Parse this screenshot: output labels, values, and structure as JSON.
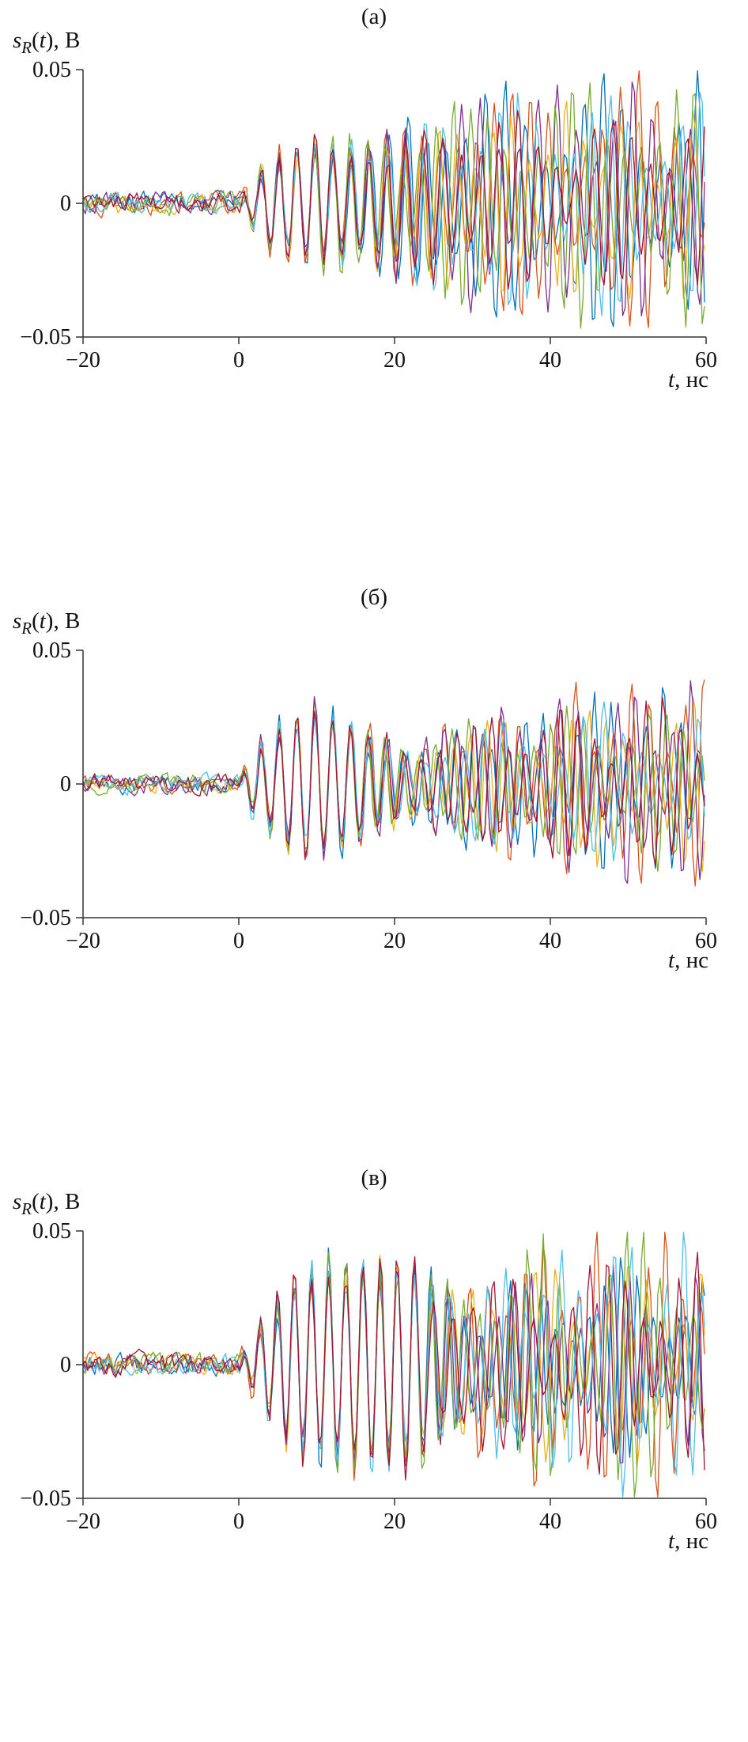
{
  "page": {
    "background": "#ffffff"
  },
  "labels": {
    "y_base": "s",
    "y_sub": "R",
    "y_open": "(",
    "y_var": "t",
    "y_close": "), В",
    "x_var": "t",
    "x_rest": ", нс"
  },
  "chart_data": [
    {
      "type": "line",
      "title": "(а)",
      "ylabel": "sR(t), В",
      "xlabel": "t, нс",
      "xlim": [
        -20,
        60
      ],
      "ylim": [
        -0.05,
        0.05
      ],
      "xticks": [
        -20,
        0,
        20,
        40,
        60
      ],
      "yticks": [
        -0.05,
        0,
        0.05
      ],
      "xtick_labels": [
        "−20",
        "0",
        "20",
        "40",
        "60"
      ],
      "ytick_labels": [
        "−0.05",
        "0",
        "0.05"
      ],
      "grid": false,
      "legend": false,
      "axis_color": "#333333",
      "series_count": 7,
      "series_description": "overlaid noisy received-pulse realizations, coherent after t=0 then progressively decorrelated",
      "colors": [
        "#0072BD",
        "#D95319",
        "#EDB120",
        "#7E2F8E",
        "#77AC30",
        "#4DBEEE",
        "#A2142F"
      ],
      "signal": {
        "carrier_period_ns": 2.3,
        "noise_amp": 0.0035,
        "envelope": [
          [
            -20,
            0
          ],
          [
            0,
            0
          ],
          [
            2,
            0.01
          ],
          [
            5,
            0.019
          ],
          [
            12,
            0.021
          ],
          [
            20,
            0.021
          ],
          [
            25,
            0.027
          ],
          [
            35,
            0.028
          ],
          [
            60,
            0.028
          ]
        ],
        "decoherence_start": 9,
        "decoherence_full": 42,
        "seed": 11
      }
    },
    {
      "type": "line",
      "title": "(б)",
      "ylabel": "sR(t), В",
      "xlabel": "t, нс",
      "xlim": [
        -20,
        60
      ],
      "ylim": [
        -0.05,
        0.05
      ],
      "xticks": [
        -20,
        0,
        20,
        40,
        60
      ],
      "yticks": [
        -0.05,
        0,
        0.05
      ],
      "xtick_labels": [
        "−20",
        "0",
        "20",
        "40",
        "60"
      ],
      "ytick_labels": [
        "−0.05",
        "0",
        "0.05"
      ],
      "grid": false,
      "legend": false,
      "axis_color": "#333333",
      "series_count": 7,
      "series_description": "overlaid noisy received-pulse realizations with burst near t=8–15 ns, dip near t=20 ns, decorrelated tail",
      "colors": [
        "#0072BD",
        "#D95319",
        "#EDB120",
        "#7E2F8E",
        "#77AC30",
        "#4DBEEE",
        "#A2142F"
      ],
      "signal": {
        "carrier_period_ns": 2.3,
        "noise_amp": 0.003,
        "envelope": [
          [
            -20,
            0
          ],
          [
            0,
            0
          ],
          [
            2,
            0.012
          ],
          [
            6,
            0.022
          ],
          [
            10,
            0.028
          ],
          [
            14,
            0.024
          ],
          [
            18,
            0.014
          ],
          [
            22,
            0.011
          ],
          [
            26,
            0.016
          ],
          [
            32,
            0.018
          ],
          [
            40,
            0.02
          ],
          [
            50,
            0.021
          ],
          [
            60,
            0.021
          ]
        ],
        "decoherence_start": 13,
        "decoherence_full": 48,
        "seed": 22
      }
    },
    {
      "type": "line",
      "title": "(в)",
      "ylabel": "sR(t), В",
      "xlabel": "t, нс",
      "xlim": [
        -20,
        60
      ],
      "ylim": [
        -0.05,
        0.05
      ],
      "xticks": [
        -20,
        0,
        20,
        40,
        60
      ],
      "yticks": [
        -0.05,
        0,
        0.05
      ],
      "xtick_labels": [
        "−20",
        "0",
        "20",
        "40",
        "60"
      ],
      "ytick_labels": [
        "−0.05",
        "0",
        "0.05"
      ],
      "grid": false,
      "legend": false,
      "axis_color": "#333333",
      "series_count": 7,
      "series_description": "overlaid received-pulse realizations: strong coherent burst t=2–24 ns (~±0.04 В), chaotic decorrelated tail reaching ±0.05 В",
      "colors": [
        "#0072BD",
        "#D95319",
        "#EDB120",
        "#7E2F8E",
        "#77AC30",
        "#4DBEEE",
        "#A2142F"
      ],
      "signal": {
        "carrier_period_ns": 2.2,
        "noise_amp": 0.0035,
        "envelope": [
          [
            -20,
            0
          ],
          [
            0,
            0
          ],
          [
            2,
            0.012
          ],
          [
            5,
            0.024
          ],
          [
            8,
            0.033
          ],
          [
            12,
            0.036
          ],
          [
            22,
            0.038
          ],
          [
            26,
            0.024
          ],
          [
            32,
            0.024
          ],
          [
            40,
            0.028
          ],
          [
            50,
            0.03
          ],
          [
            60,
            0.03
          ]
        ],
        "decoherence_start": 23,
        "decoherence_full": 40,
        "seed": 33
      }
    }
  ]
}
